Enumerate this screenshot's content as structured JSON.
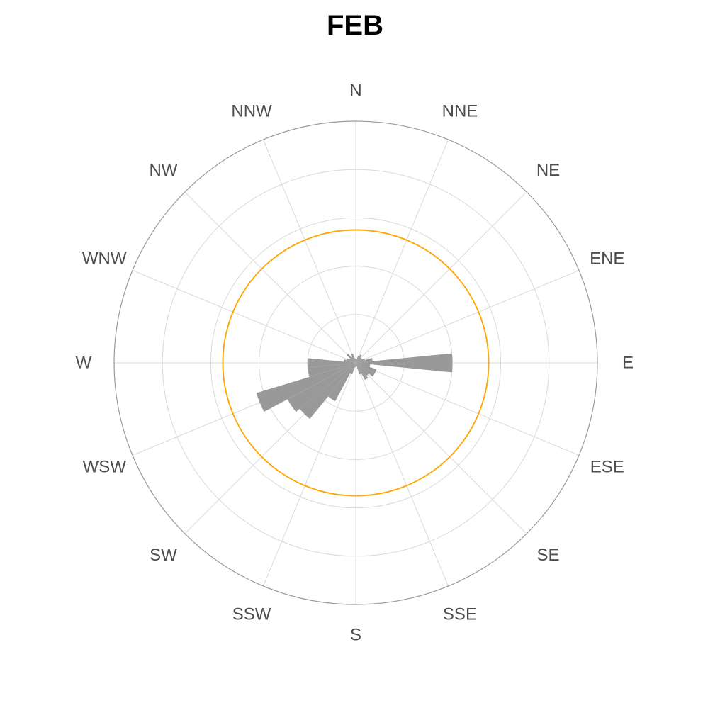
{
  "chart_data": {
    "type": "polar-bar",
    "title": "FEB",
    "directions": [
      "N",
      "NNE",
      "NE",
      "ENE",
      "E",
      "ESE",
      "SE",
      "SSE",
      "S",
      "SSW",
      "SW",
      "WSW",
      "W",
      "WNW",
      "NW",
      "NNW"
    ],
    "bins_per_direction": 2,
    "rmax": 100,
    "grid_values": [
      20,
      40,
      60,
      80
    ],
    "reference_value": 55,
    "bars": [
      {
        "angle": 0,
        "value": 1.5
      },
      {
        "angle": 11.25,
        "value": 1.5
      },
      {
        "angle": 22.5,
        "value": 3
      },
      {
        "angle": 33.75,
        "value": 4
      },
      {
        "angle": 45,
        "value": 3
      },
      {
        "angle": 56.25,
        "value": 3
      },
      {
        "angle": 67.5,
        "value": 4
      },
      {
        "angle": 78.75,
        "value": 7
      },
      {
        "angle": 90,
        "value": 40
      },
      {
        "angle": 101.25,
        "value": 6
      },
      {
        "angle": 112.5,
        "value": 9
      },
      {
        "angle": 123.75,
        "value": 9
      },
      {
        "angle": 135,
        "value": 7
      },
      {
        "angle": 146.25,
        "value": 8
      },
      {
        "angle": 157.5,
        "value": 5
      },
      {
        "angle": 168.75,
        "value": 1.5
      },
      {
        "angle": 180,
        "value": 1.5
      },
      {
        "angle": 191.25,
        "value": 2
      },
      {
        "angle": 202.5,
        "value": 5
      },
      {
        "angle": 213.75,
        "value": 18
      },
      {
        "angle": 225,
        "value": 30
      },
      {
        "angle": 236.25,
        "value": 32
      },
      {
        "angle": 247.5,
        "value": 43
      },
      {
        "angle": 258.75,
        "value": 20
      },
      {
        "angle": 270,
        "value": 20
      },
      {
        "angle": 281.25,
        "value": 5
      },
      {
        "angle": 292.5,
        "value": 4
      },
      {
        "angle": 303.75,
        "value": 3
      },
      {
        "angle": 315,
        "value": 5
      },
      {
        "angle": 326.25,
        "value": 3
      },
      {
        "angle": 337.5,
        "value": 4
      },
      {
        "angle": 348.75,
        "value": 2
      }
    ],
    "colors": {
      "bars": "#999999",
      "reference": "#FFA500",
      "grid": "#d9d9d9",
      "outer": "#9a9a9a",
      "labels": "#4d4d4d"
    }
  }
}
